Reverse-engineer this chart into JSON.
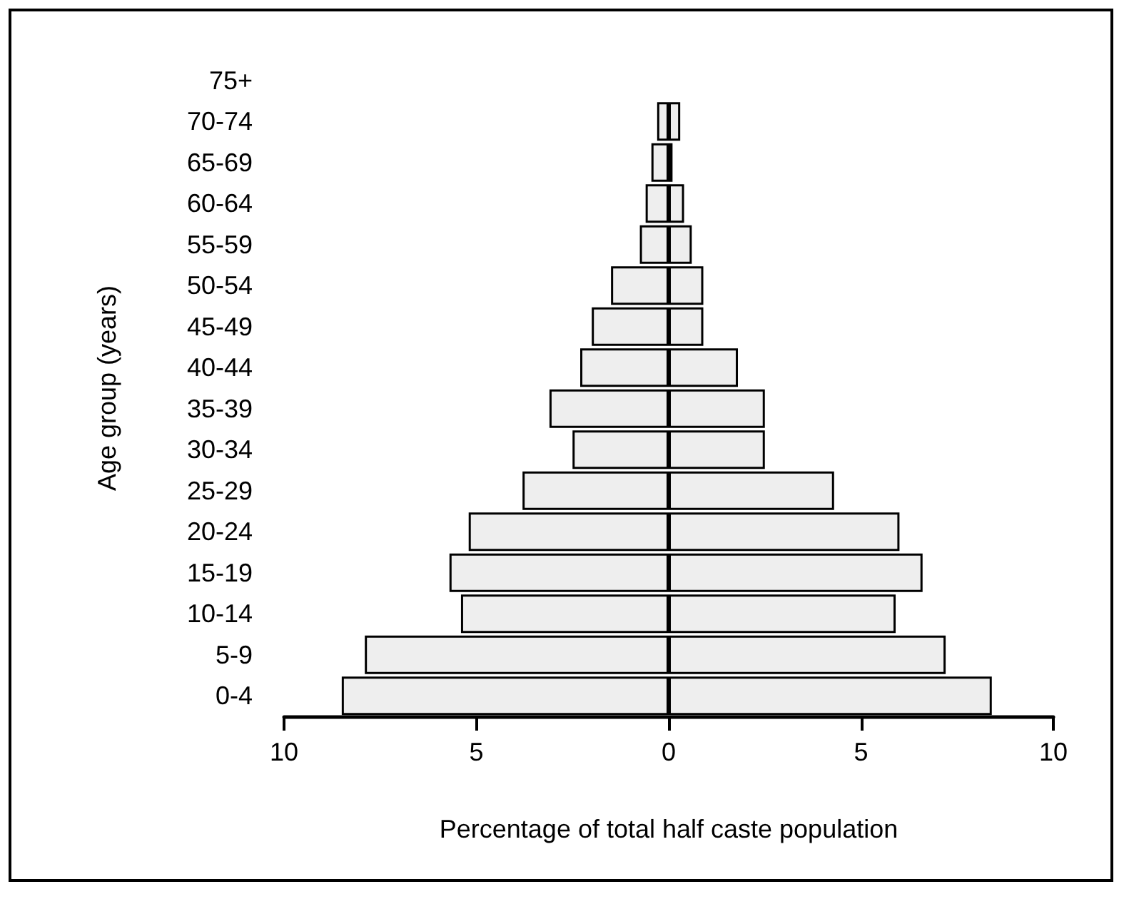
{
  "chart_data": {
    "type": "bar",
    "orientation": "horizontal",
    "stacked": true,
    "xlabel": "Percentage of total half caste population",
    "ylabel": "Age group (years)",
    "categories": [
      "75+",
      "70-74",
      "65-69",
      "60-64",
      "55-59",
      "50-54",
      "45-49",
      "40-44",
      "35-39",
      "30-34",
      "25-29",
      "20-24",
      "15-19",
      "10-14",
      "5-9",
      "0-4"
    ],
    "series": [
      {
        "color": "#eeeeee",
        "values": [
          0,
          -0.3,
          -0.45,
          -0.6,
          -0.75,
          -1.5,
          -2.0,
          -2.3,
          -3.1,
          -2.5,
          -3.8,
          -5.2,
          -5.7,
          -5.4,
          -7.9,
          -8.5
        ]
      },
      {
        "color": "#eeeeee",
        "values": [
          0,
          0.3,
          0.1,
          0.4,
          0.6,
          0.9,
          0.9,
          1.8,
          2.5,
          2.5,
          4.3,
          6.0,
          6.6,
          5.9,
          7.2,
          8.4
        ]
      }
    ],
    "xlim": [
      -10,
      10
    ],
    "xticks": [
      {
        "value": -10,
        "label": "10"
      },
      {
        "value": -5,
        "label": "5"
      },
      0,
      5,
      10
    ],
    "grid": false,
    "legend": false
  }
}
